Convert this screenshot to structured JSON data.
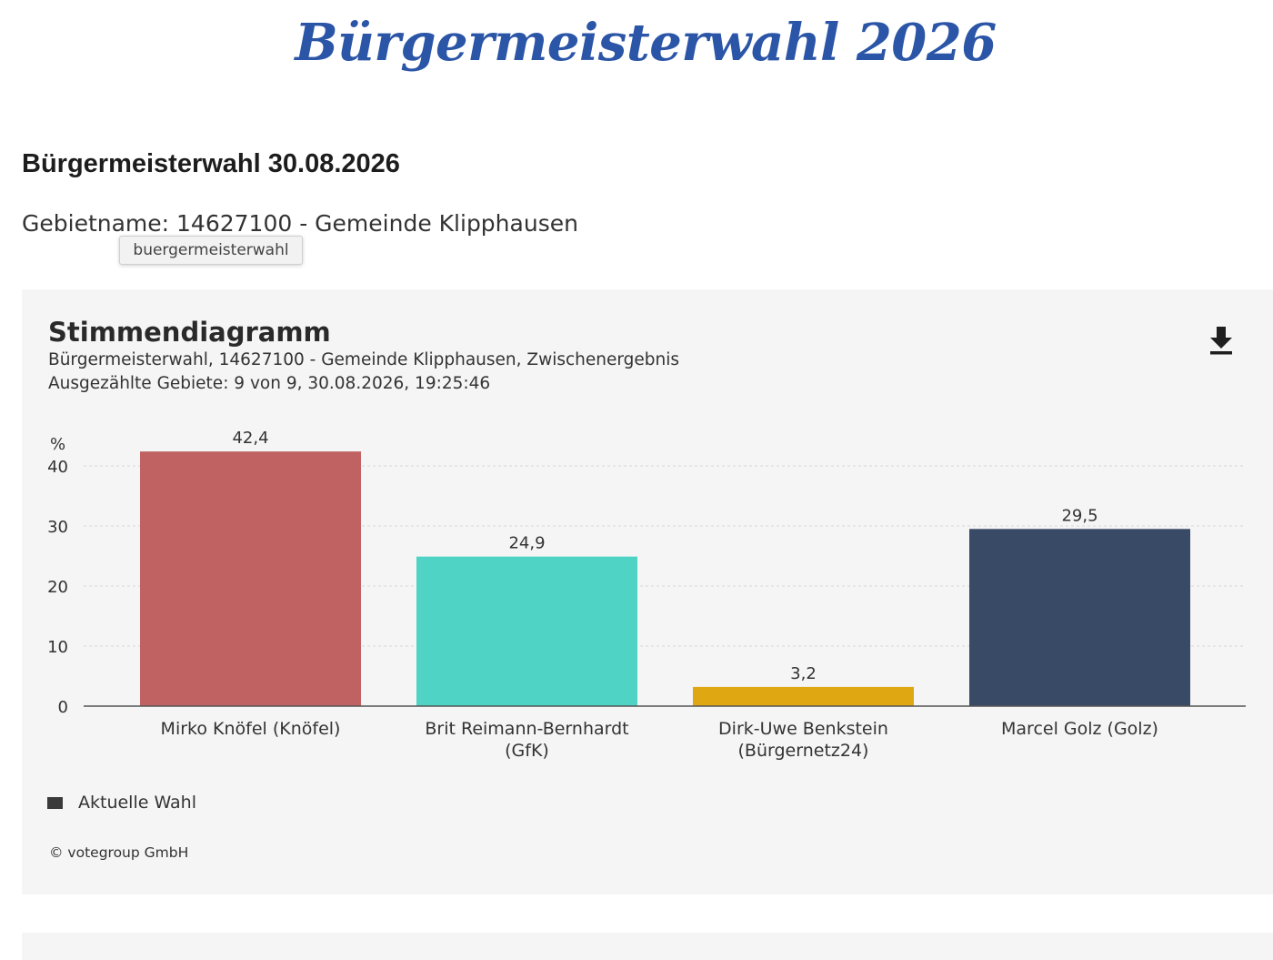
{
  "page": {
    "site_title": "Bürgermeisterwahl 2026",
    "heading": "Bürgermeisterwahl 30.08.2026",
    "region_line": "Gebietname: 14627100 - Gemeinde Klipphausen",
    "tooltip": "buergermeisterwahl"
  },
  "panel": {
    "title": "Stimmendiagramm",
    "subtitle": "Bürgermeisterwahl, 14627100 - Gemeinde Klipphausen, Zwischenergebnis",
    "counted": "Ausgezählte Gebiete: 9 von 9, 30.08.2026, 19:25:46",
    "download_icon": "download-icon",
    "legend_label": "Aktuelle Wahl",
    "credit": "© votegroup GmbH"
  },
  "chart_data": {
    "type": "bar",
    "ylabel": "%",
    "ylim": [
      0,
      42.4
    ],
    "yticks": [
      0,
      10,
      20,
      30,
      40
    ],
    "grid": true,
    "legend": "bottom-left",
    "categories": [
      [
        "Mirko Knöfel (Knöfel)"
      ],
      [
        "Brit Reimann-Bernhardt",
        "(GfK)"
      ],
      [
        "Dirk-Uwe Benkstein",
        "(Bürgernetz24)"
      ],
      [
        "Marcel Golz (Golz)"
      ]
    ],
    "values": [
      42.4,
      24.9,
      3.2,
      29.5
    ],
    "value_labels": [
      "42,4",
      "24,9",
      "3,2",
      "29,5"
    ],
    "colors": [
      "#c06262",
      "#4fd3c4",
      "#dfa712",
      "#384a66"
    ],
    "series": [
      {
        "name": "Aktuelle Wahl",
        "values": [
          42.4,
          24.9,
          3.2,
          29.5
        ]
      }
    ]
  }
}
